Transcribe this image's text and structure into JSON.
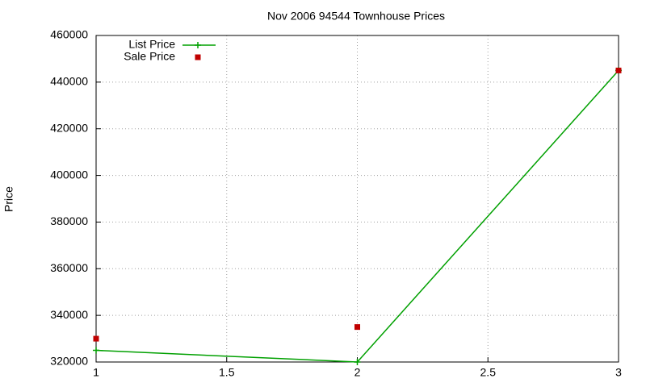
{
  "chart_data": {
    "type": "line",
    "title": "Nov 2006 94544 Townhouse Prices",
    "y_label": "Price",
    "x": [
      1,
      2,
      3
    ],
    "series": [
      {
        "name": "List Price",
        "color": "#00a000",
        "values": [
          325000,
          320000,
          445000
        ],
        "line": true,
        "marker": "plus"
      },
      {
        "name": "Sale Price",
        "color": "#c00000",
        "values": [
          330000,
          335000,
          445000
        ],
        "line": false,
        "marker": "square"
      }
    ],
    "xlim": [
      1,
      3
    ],
    "xticks": [
      1,
      1.5,
      2,
      2.5,
      3
    ],
    "ylim": [
      320000,
      460000
    ],
    "yticks": [
      320000,
      340000,
      360000,
      380000,
      400000,
      420000,
      440000,
      460000
    ],
    "grid": true,
    "legend": "top-left"
  }
}
